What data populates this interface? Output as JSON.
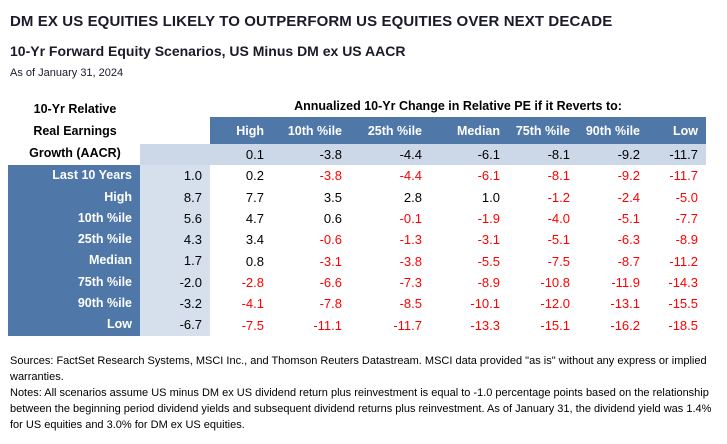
{
  "title": "DM EX US EQUITIES LIKELY TO OUTPERFORM US EQUITIES OVER NEXT DECADE",
  "subtitle": "10-Yr Forward Equity Scenarios, US Minus DM ex US AACR",
  "as_of": "As of January 31, 2024",
  "colors": {
    "band_blue": "#4f77a8",
    "pe_row_blue": "#ccd8e8",
    "aacr_col_blue": "#d6dfec",
    "negative_red": "#ff0000",
    "text_dark": "#1a1a2b"
  },
  "chart_data": {
    "type": "table",
    "corner_header_lines": [
      "10-Yr Relative",
      "Real Earnings",
      "Growth (AACR)"
    ],
    "span_header": "Annualized 10-Yr Change in Relative PE if it Reverts to:",
    "columns": [
      "High",
      "10th %ile",
      "25th %ile",
      "Median",
      "75th %ile",
      "90th %ile",
      "Low"
    ],
    "current_pe_change_row": [
      "0.1",
      "-3.8",
      "-4.4",
      "-6.1",
      "-8.1",
      "-9.2",
      "-11.7"
    ],
    "rows": [
      {
        "label": "Last 10 Years",
        "aacr": "1.0",
        "values": [
          "0.2",
          "-3.8",
          "-4.4",
          "-6.1",
          "-8.1",
          "-9.2",
          "-11.7"
        ]
      },
      {
        "label": "High",
        "aacr": "8.7",
        "values": [
          "7.7",
          "3.5",
          "2.8",
          "1.0",
          "-1.2",
          "-2.4",
          "-5.0"
        ]
      },
      {
        "label": "10th %ile",
        "aacr": "5.6",
        "values": [
          "4.7",
          "0.6",
          "-0.1",
          "-1.9",
          "-4.0",
          "-5.1",
          "-7.7"
        ]
      },
      {
        "label": "25th %ile",
        "aacr": "4.3",
        "values": [
          "3.4",
          "-0.6",
          "-1.3",
          "-3.1",
          "-5.1",
          "-6.3",
          "-8.9"
        ]
      },
      {
        "label": "Median",
        "aacr": "1.7",
        "values": [
          "0.8",
          "-3.1",
          "-3.8",
          "-5.5",
          "-7.5",
          "-8.7",
          "-11.2"
        ]
      },
      {
        "label": "75th %ile",
        "aacr": "-2.0",
        "values": [
          "-2.8",
          "-6.6",
          "-7.3",
          "-8.9",
          "-10.8",
          "-11.9",
          "-14.3"
        ]
      },
      {
        "label": "90th %ile",
        "aacr": "-3.2",
        "values": [
          "-4.1",
          "-7.8",
          "-8.5",
          "-10.1",
          "-12.0",
          "-13.1",
          "-15.5"
        ]
      },
      {
        "label": "Low",
        "aacr": "-6.7",
        "values": [
          "-7.5",
          "-11.1",
          "-11.7",
          "-13.3",
          "-15.1",
          "-16.2",
          "-18.5"
        ]
      }
    ]
  },
  "footnotes": {
    "sources": "Sources: FactSet Research Systems, MSCI Inc., and Thomson Reuters Datastream. MSCI data provided \"as is\" without any express or implied warranties.",
    "notes": "Notes: All scenarios assume US minus DM ex US dividend return plus reinvestment is equal to -1.0 percentage points based on the relationship between the beginning period dividend yields and subsequent dividend returns plus reinvestment. As of January 31, the dividend yield was 1.4% for US equities and 3.0% for DM ex US equities."
  }
}
